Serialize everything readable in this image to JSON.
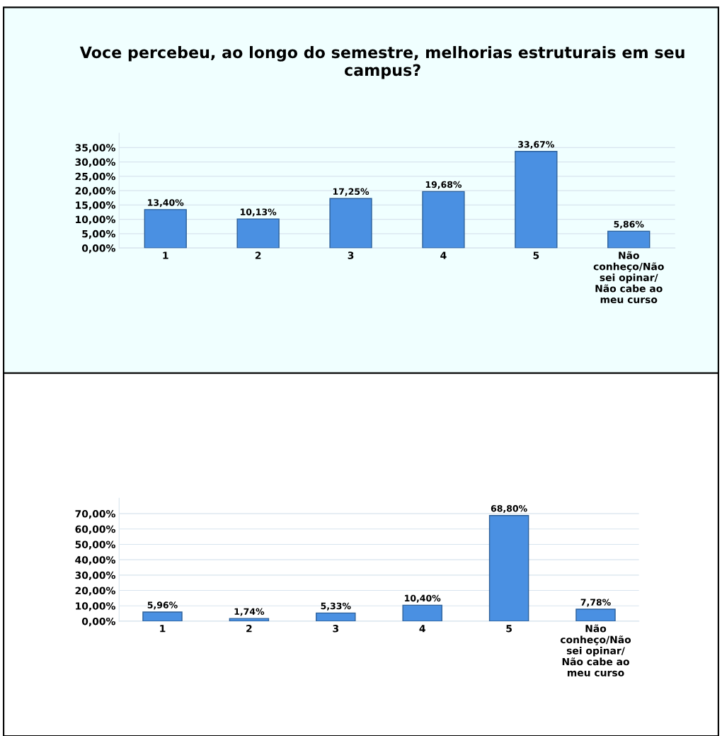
{
  "chart_data": [
    {
      "type": "bar",
      "title": "Voce percebeu, ao longo do semestre, melhorias estruturais em seu campus?",
      "categories": [
        "1",
        "2",
        "3",
        "4",
        "5",
        "Não\nconheço/Não\nsei opinar/\nNão cabe ao\nmeu curso"
      ],
      "values": [
        13.4,
        10.13,
        17.25,
        19.68,
        33.67,
        5.86
      ],
      "value_labels": [
        "13,40%",
        "10,13%",
        "17,25%",
        "19,68%",
        "33,67%",
        "5,86%"
      ],
      "color": "#4a90e2",
      "ylim": [
        0,
        40
      ],
      "yticks": [
        {
          "value": 0,
          "label": "0,00%"
        },
        {
          "value": 5,
          "label": "5,00%"
        },
        {
          "value": 10,
          "label": "10,00%"
        },
        {
          "value": 15,
          "label": "15,00%"
        },
        {
          "value": 20,
          "label": "20,00%"
        },
        {
          "value": 25,
          "label": "25,00%"
        },
        {
          "value": 30,
          "label": "30,00%"
        },
        {
          "value": 35,
          "label": "35,00%"
        }
      ],
      "grid": "y"
    },
    {
      "type": "bar",
      "categories": [
        "1",
        "2",
        "3",
        "4",
        "5",
        "Não\nconheço/Não\nsei opinar/\nNão cabe ao\nmeu curso"
      ],
      "values": [
        5.96,
        1.74,
        5.33,
        10.4,
        68.8,
        7.78
      ],
      "value_labels": [
        "5,96%",
        "1,74%",
        "5,33%",
        "10,40%",
        "68,80%",
        "7,78%"
      ],
      "color": "#4a90e2",
      "ylim": [
        0,
        80
      ],
      "yticks": [
        {
          "value": 0,
          "label": "0,00%"
        },
        {
          "value": 10,
          "label": "10,00%"
        },
        {
          "value": 20,
          "label": "20,00%"
        },
        {
          "value": 30,
          "label": "30,00%"
        },
        {
          "value": 40,
          "label": "40,00%"
        },
        {
          "value": 50,
          "label": "50,00%"
        },
        {
          "value": 60,
          "label": "60,00%"
        },
        {
          "value": 70,
          "label": "70,00%"
        }
      ],
      "grid": "y"
    }
  ]
}
